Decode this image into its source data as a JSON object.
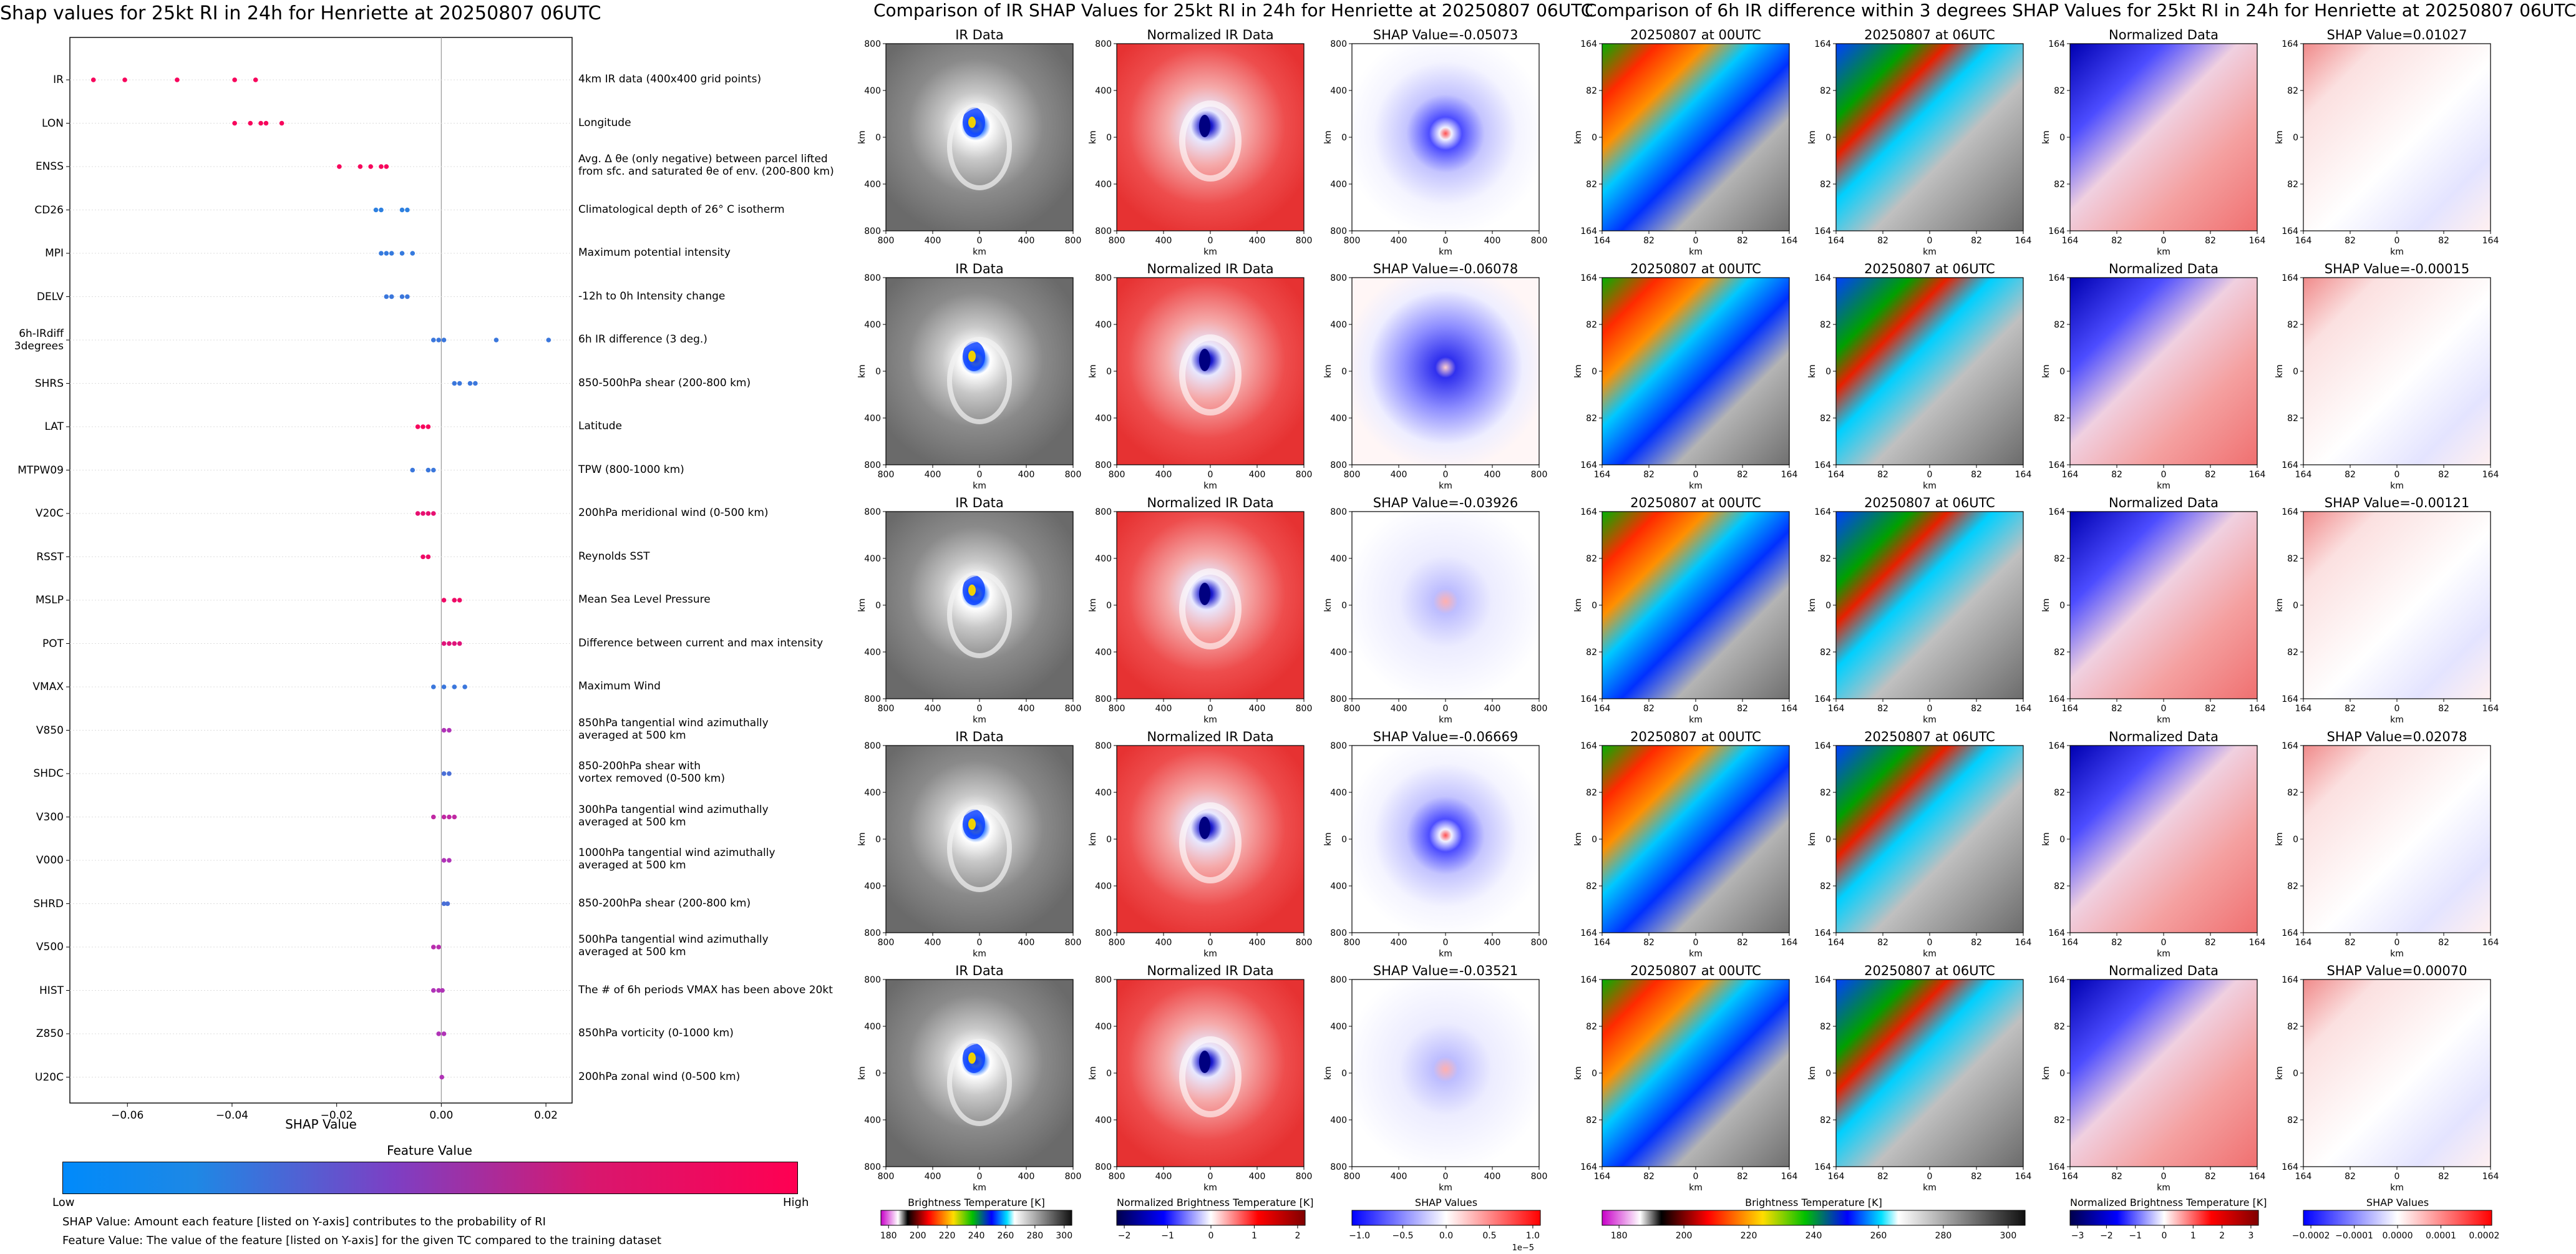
{
  "left_panel": {
    "title": "Shap values for 25kt RI in 24h for Henriette at 20250807 06UTC",
    "xlabel": "SHAP Value",
    "colorbar_title": "Feature Value",
    "colorbar_low": "Low",
    "colorbar_high": "High",
    "footnote1": "SHAP Value: Amount each feature [listed on Y-axis] contributes to the probability of RI",
    "footnote2": "Feature Value: The value of the feature [listed on Y-axis] for the given TC compared to the training dataset",
    "colors": {
      "low": "#1e88e5",
      "mid": "#b033b7",
      "high": "#ff0052"
    }
  },
  "chart_data": [
    {
      "type": "scatter",
      "title": "Shap values for 25kt RI in 24h for Henriette at 20250807 06UTC",
      "xlabel": "SHAP Value",
      "xlim": [
        -0.071,
        0.025
      ],
      "xticks": [
        -0.06,
        -0.04,
        -0.02,
        0.0,
        0.02
      ],
      "xtick_labels": [
        "−0.06",
        "−0.04",
        "−0.02",
        "0.00",
        "0.02"
      ],
      "features": [
        {
          "name": "IR",
          "desc": "4km IR data (400x400 grid points)",
          "points": [
            [
              -0.0665,
              0.95
            ],
            [
              -0.0605,
              0.95
            ],
            [
              -0.0505,
              0.95
            ],
            [
              -0.0395,
              0.95
            ],
            [
              -0.0355,
              0.95
            ]
          ]
        },
        {
          "name": "LON",
          "desc": "Longitude",
          "points": [
            [
              -0.0395,
              0.95
            ],
            [
              -0.0365,
              0.95
            ],
            [
              -0.0345,
              0.95
            ],
            [
              -0.0335,
              0.95
            ],
            [
              -0.0305,
              0.95
            ]
          ]
        },
        {
          "name": "ENSS",
          "desc": "Avg. Δ θe (only negative) between parcel lifted\nfrom sfc. and saturated θe of env. (200-800 km)",
          "points": [
            [
              -0.0195,
              0.95
            ],
            [
              -0.0155,
              0.95
            ],
            [
              -0.0135,
              0.95
            ],
            [
              -0.0115,
              0.95
            ],
            [
              -0.0105,
              0.95
            ]
          ]
        },
        {
          "name": "CD26",
          "desc": "Climatological depth of 26° C isotherm",
          "points": [
            [
              -0.0125,
              0.05
            ],
            [
              -0.0115,
              0.05
            ],
            [
              -0.0075,
              0.05
            ],
            [
              -0.0065,
              0.05
            ]
          ]
        },
        {
          "name": "MPI",
          "desc": "Maximum potential intensity",
          "points": [
            [
              -0.0115,
              0.08
            ],
            [
              -0.0105,
              0.08
            ],
            [
              -0.0095,
              0.08
            ],
            [
              -0.0075,
              0.08
            ],
            [
              -0.0055,
              0.08
            ]
          ]
        },
        {
          "name": "DELV",
          "desc": "-12h to 0h Intensity change",
          "points": [
            [
              -0.0105,
              0.1
            ],
            [
              -0.0095,
              0.1
            ],
            [
              -0.0075,
              0.1
            ],
            [
              -0.0065,
              0.1
            ]
          ]
        },
        {
          "name": "6h-IRdiff\n3degrees",
          "desc": "6h IR difference (3 deg.)",
          "points": [
            [
              -0.0015,
              0.1
            ],
            [
              -0.0005,
              0.1
            ],
            [
              0.0005,
              0.1
            ],
            [
              0.0105,
              0.1
            ],
            [
              0.0205,
              0.1
            ]
          ]
        },
        {
          "name": "SHRS",
          "desc": "850-500hPa shear (200-800 km)",
          "points": [
            [
              0.0025,
              0.1
            ],
            [
              0.0035,
              0.1
            ],
            [
              0.0055,
              0.1
            ],
            [
              0.0065,
              0.1
            ]
          ]
        },
        {
          "name": "LAT",
          "desc": "Latitude",
          "points": [
            [
              -0.0045,
              0.95
            ],
            [
              -0.0035,
              0.95
            ],
            [
              -0.0025,
              0.95
            ]
          ]
        },
        {
          "name": "MTPW09",
          "desc": "TPW (800-1000 km)",
          "points": [
            [
              -0.0055,
              0.1
            ],
            [
              -0.0025,
              0.1
            ],
            [
              -0.0015,
              0.1
            ]
          ]
        },
        {
          "name": "V20C",
          "desc": "200hPa meridional wind (0-500 km)",
          "points": [
            [
              -0.0045,
              0.85
            ],
            [
              -0.0035,
              0.85
            ],
            [
              -0.0025,
              0.85
            ],
            [
              -0.0015,
              0.85
            ]
          ]
        },
        {
          "name": "RSST",
          "desc": "Reynolds SST",
          "points": [
            [
              -0.0035,
              0.9
            ],
            [
              -0.0025,
              0.9
            ]
          ]
        },
        {
          "name": "MSLP",
          "desc": "Mean Sea Level Pressure",
          "points": [
            [
              0.0005,
              0.9
            ],
            [
              0.0025,
              0.9
            ],
            [
              0.0035,
              0.9
            ]
          ]
        },
        {
          "name": "POT",
          "desc": "Difference between current and max intensity",
          "points": [
            [
              0.0005,
              0.8
            ],
            [
              0.0015,
              0.8
            ],
            [
              0.0025,
              0.8
            ],
            [
              0.0035,
              0.8
            ]
          ]
        },
        {
          "name": "VMAX",
          "desc": "Maximum Wind",
          "points": [
            [
              -0.0015,
              0.1
            ],
            [
              0.0005,
              0.1
            ],
            [
              0.0025,
              0.1
            ],
            [
              0.0045,
              0.1
            ]
          ]
        },
        {
          "name": "V850",
          "desc": "850hPa tangential wind azimuthally\naveraged at 500 km",
          "points": [
            [
              0.0005,
              0.5
            ],
            [
              0.0015,
              0.5
            ]
          ]
        },
        {
          "name": "SHDC",
          "desc": "850-200hPa shear with\nvortex removed (0-500 km)",
          "points": [
            [
              0.0005,
              0.15
            ],
            [
              0.0015,
              0.15
            ]
          ]
        },
        {
          "name": "V300",
          "desc": "300hPa tangential wind azimuthally\naveraged at 500 km",
          "points": [
            [
              -0.0015,
              0.6
            ],
            [
              0.0005,
              0.6
            ],
            [
              0.0015,
              0.6
            ],
            [
              0.0025,
              0.6
            ]
          ]
        },
        {
          "name": "V000",
          "desc": "1000hPa tangential wind azimuthally\naveraged at 500 km",
          "points": [
            [
              0.0005,
              0.5
            ],
            [
              0.0015,
              0.5
            ]
          ]
        },
        {
          "name": "SHRD",
          "desc": "850-200hPa shear (200-800 km)",
          "points": [
            [
              0.0005,
              0.15
            ],
            [
              0.0012,
              0.15
            ]
          ]
        },
        {
          "name": "V500",
          "desc": "500hPa tangential wind azimuthally\naveraged at 500 km",
          "points": [
            [
              -0.0015,
              0.55
            ],
            [
              -0.0005,
              0.55
            ]
          ]
        },
        {
          "name": "HIST",
          "desc": "The # of 6h periods VMAX has been above 20kt",
          "points": [
            [
              -0.0015,
              0.5
            ],
            [
              -0.0005,
              0.5
            ],
            [
              0.0002,
              0.5
            ]
          ]
        },
        {
          "name": "Z850",
          "desc": "850hPa vorticity (0-1000 km)",
          "points": [
            [
              -0.0005,
              0.5
            ],
            [
              0.0005,
              0.5
            ]
          ]
        },
        {
          "name": "U20C",
          "desc": "200hPa zonal wind (0-500 km)",
          "points": [
            [
              0.0001,
              0.5
            ]
          ]
        }
      ]
    },
    {
      "type": "heatmap",
      "title": "Comparison of IR SHAP Values for 25kt RI in 24h for Henriette at 20250807 06UTC",
      "columns": [
        "IR Data",
        "Normalized IR Data",
        "SHAP"
      ],
      "rows": 5,
      "shap_titles": [
        "SHAP Value=-0.05073",
        "SHAP Value=-0.06078",
        "SHAP Value=-0.03926",
        "SHAP Value=-0.06669",
        "SHAP Value=-0.03521"
      ],
      "axis_label": "km",
      "tick_labels": [
        "800",
        "400",
        "0",
        "400",
        "800"
      ],
      "colorbars": [
        {
          "label": "Brightness Temperature [K]",
          "ticks": [
            "180",
            "200",
            "220",
            "240",
            "260",
            "280",
            "300"
          ]
        },
        {
          "label": "Normalized Brightness Temperature [K]",
          "ticks": [
            "−2",
            "−1",
            "0",
            "1",
            "2"
          ]
        },
        {
          "label": "SHAP Values",
          "ticks": [
            "−1.0",
            "−0.5",
            "0.0",
            "0.5",
            "1.0"
          ],
          "offset": "1e−5"
        }
      ]
    },
    {
      "type": "heatmap",
      "title": "Comparison of 6h IR difference within 3 degrees SHAP Values for 25kt RI in 24h for Henriette at 20250807 06UTC",
      "columns": [
        "20250807 at 00UTC",
        "20250807 at 06UTC",
        "Normalized Data",
        "SHAP"
      ],
      "rows": 5,
      "shap_titles": [
        "SHAP Value=0.01027",
        "SHAP Value=-0.00015",
        "SHAP Value=-0.00121",
        "SHAP Value=0.02078",
        "SHAP Value=0.00070"
      ],
      "axis_label": "km",
      "tick_labels": [
        "164",
        "82",
        "0",
        "82",
        "164"
      ],
      "colorbars": [
        {
          "label": "Brightness Temperature [K]",
          "ticks": [
            "180",
            "200",
            "220",
            "240",
            "260",
            "280",
            "300"
          ]
        },
        {
          "label": "Normalized Brightness Temperature [K]",
          "ticks": [
            "−3",
            "−2",
            "−1",
            "0",
            "1",
            "2",
            "3"
          ]
        },
        {
          "label": "SHAP Values",
          "ticks": [
            "−0.0002",
            "−0.0001",
            "0.0000",
            "0.0001",
            "0.0002"
          ]
        }
      ]
    }
  ]
}
